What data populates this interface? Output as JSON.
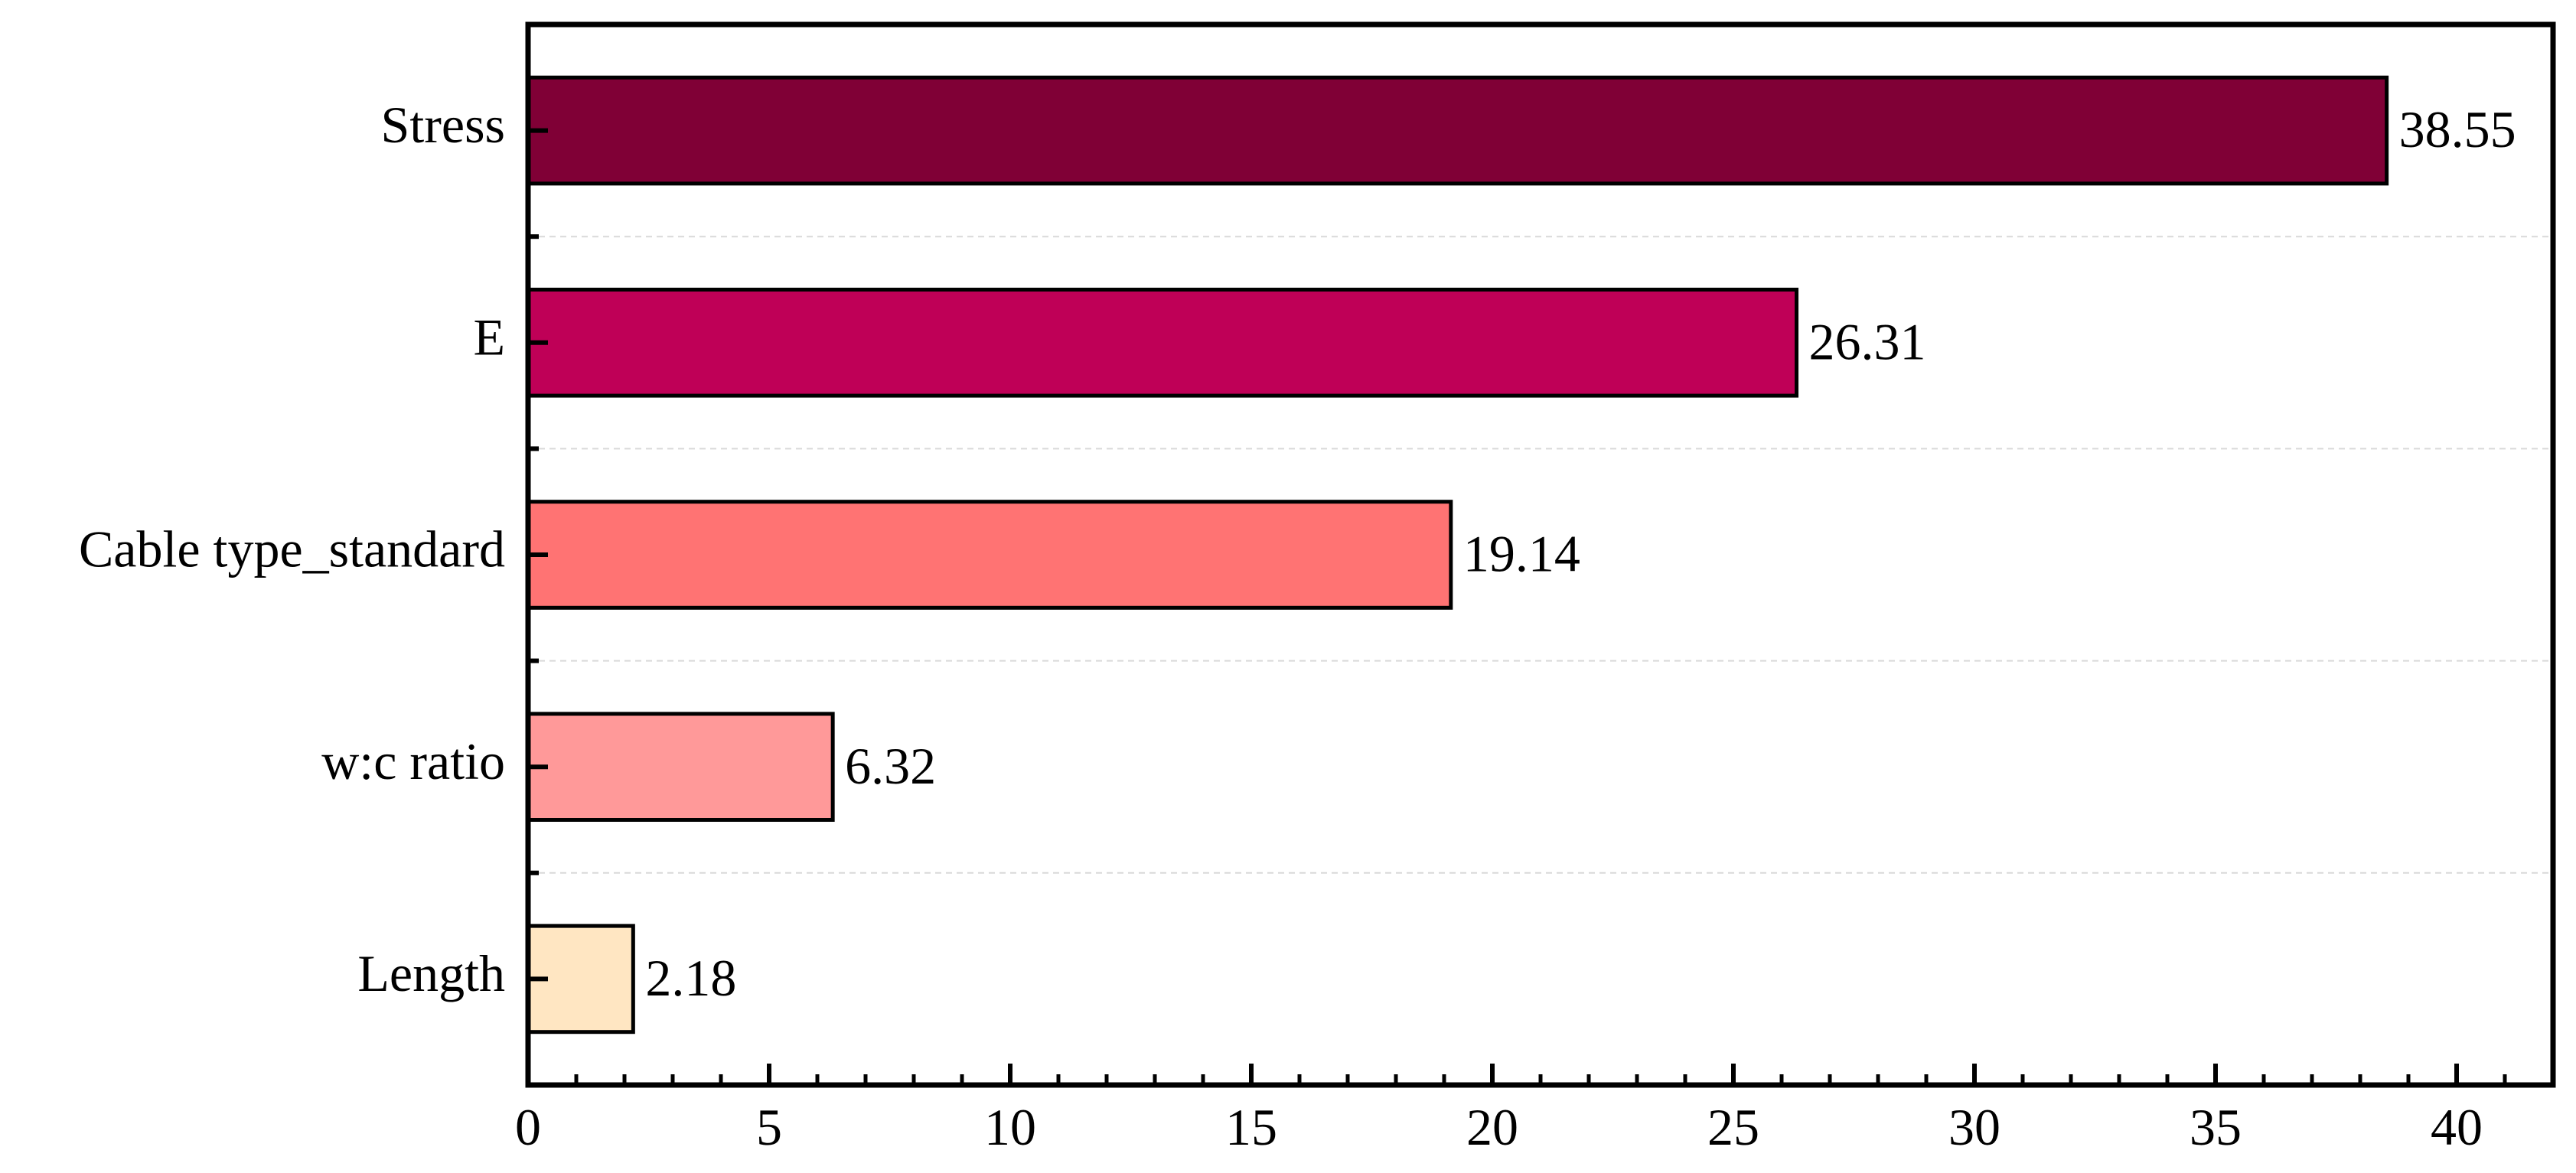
{
  "chart_data": {
    "type": "bar",
    "orientation": "horizontal",
    "categories": [
      "Stress",
      "E",
      "Cable type_standard",
      "w:c ratio",
      "Length"
    ],
    "values": [
      38.55,
      26.31,
      19.14,
      6.32,
      2.18
    ],
    "data_labels": [
      "38.55",
      "26.31",
      "19.14",
      "6.32",
      "2.18"
    ],
    "colors": [
      "#800036",
      "#bf0057",
      "#ff7373",
      "#ff9999",
      "#ffe6c2"
    ],
    "xlim": [
      0,
      42
    ],
    "x_ticks": [
      0,
      5,
      10,
      15,
      20,
      25,
      30,
      35,
      40
    ],
    "x_tick_labels": [
      "0",
      "5",
      "10",
      "15",
      "20",
      "25",
      "30",
      "35",
      "40"
    ],
    "minor_tick_step": 1,
    "grid": "horizontal dashed separators between bars",
    "title": "",
    "xlabel": "",
    "ylabel": ""
  }
}
